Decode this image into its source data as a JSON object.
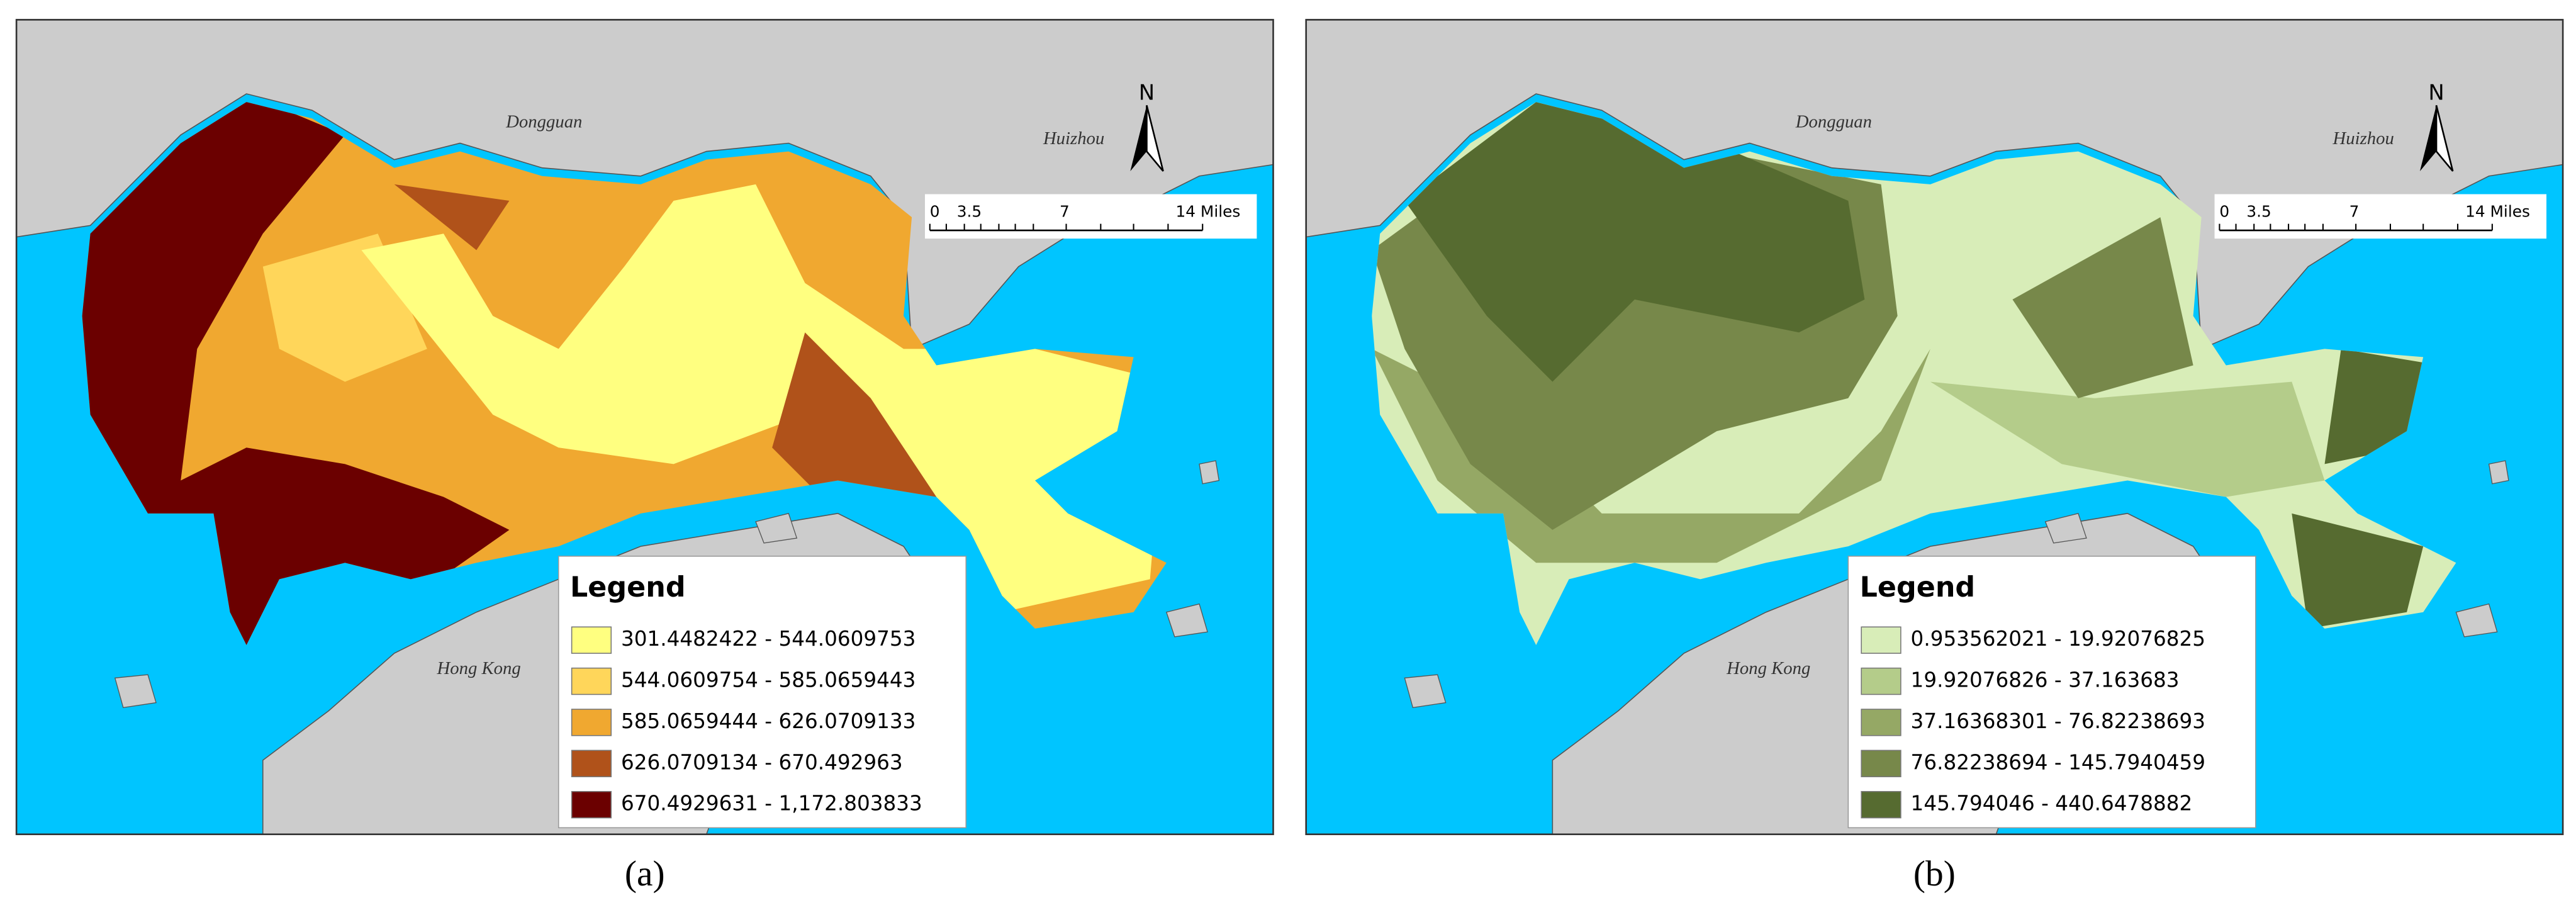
{
  "panels": [
    {
      "label": "(a)",
      "places": {
        "dongguan": "Dongguan",
        "huizhou": "Huizhou",
        "hong_kong": "Hong Kong"
      },
      "north": "N",
      "scale_bar": [
        "0",
        "3.5",
        "7",
        "14 Miles"
      ],
      "legend": {
        "title": "Legend",
        "items": [
          {
            "label": "301.4482422 - 544.0609753",
            "color": "#ffff80"
          },
          {
            "label": "544.0609754 - 585.0659443",
            "color": "#ffd65a"
          },
          {
            "label": "585.0659444 - 626.0709133",
            "color": "#f0a830"
          },
          {
            "label": "626.0709134 - 670.492963",
            "color": "#b0521a"
          },
          {
            "label": "670.4929631 - 1,172.803833",
            "color": "#6b0000"
          }
        ]
      }
    },
    {
      "label": "(b)",
      "places": {
        "dongguan": "Dongguan",
        "huizhou": "Huizhou",
        "hong_kong": "Hong Kong"
      },
      "north": "N",
      "scale_bar": [
        "0",
        "3.5",
        "7",
        "14 Miles"
      ],
      "legend": {
        "title": "Legend",
        "items": [
          {
            "label": "0.953562021 - 19.92076825",
            "color": "#d8edb8"
          },
          {
            "label": "19.92076826 - 37.163683",
            "color": "#b4cc8a"
          },
          {
            "label": "37.16368301 - 76.82238693",
            "color": "#95a865"
          },
          {
            "label": "76.82238694 - 145.7940459",
            "color": "#77884a"
          },
          {
            "label": "145.794046 - 440.6478882",
            "color": "#566b30"
          }
        ]
      }
    }
  ]
}
